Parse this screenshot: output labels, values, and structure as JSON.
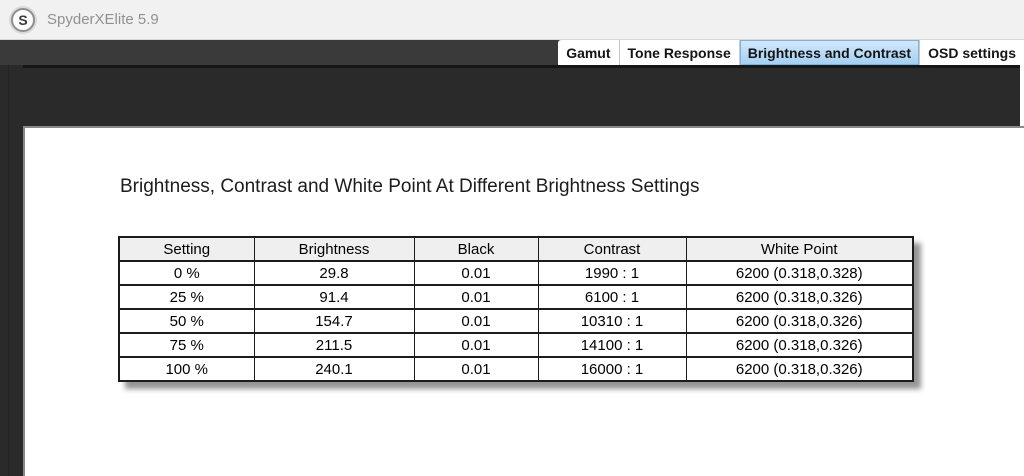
{
  "window": {
    "title": "SpyderXElite 5.9",
    "logo_letter": "S"
  },
  "tabs": [
    {
      "label": "Gamut",
      "selected": false
    },
    {
      "label": "Tone Response",
      "selected": false
    },
    {
      "label": "Brightness and Contrast",
      "selected": true
    },
    {
      "label": "OSD settings",
      "selected": false
    }
  ],
  "content": {
    "heading": "Brightness, Contrast and White Point At Different Brightness Settings",
    "table": {
      "columns": [
        "Setting",
        "Brightness",
        "Black",
        "Contrast",
        "White Point"
      ],
      "rows": [
        [
          "0 %",
          "29.8",
          "0.01",
          "1990 : 1",
          "6200 (0.318,0.328)"
        ],
        [
          "25 %",
          "91.4",
          "0.01",
          "6100 : 1",
          "6200 (0.318,0.326)"
        ],
        [
          "50 %",
          "154.7",
          "0.01",
          "10310 : 1",
          "6200 (0.318,0.326)"
        ],
        [
          "75 %",
          "211.5",
          "0.01",
          "14100 : 1",
          "6200 (0.318,0.326)"
        ],
        [
          "100 %",
          "240.1",
          "0.01",
          "16000 : 1",
          "6200 (0.318,0.326)"
        ]
      ]
    }
  },
  "colors": {
    "selected_tab_top": "#d3e9fc",
    "selected_tab_bottom": "#a4cef2",
    "titlebar_bg": "#f1f1f1",
    "dark_frame": "#2a2a2a",
    "table_header_bg": "#efefef"
  }
}
